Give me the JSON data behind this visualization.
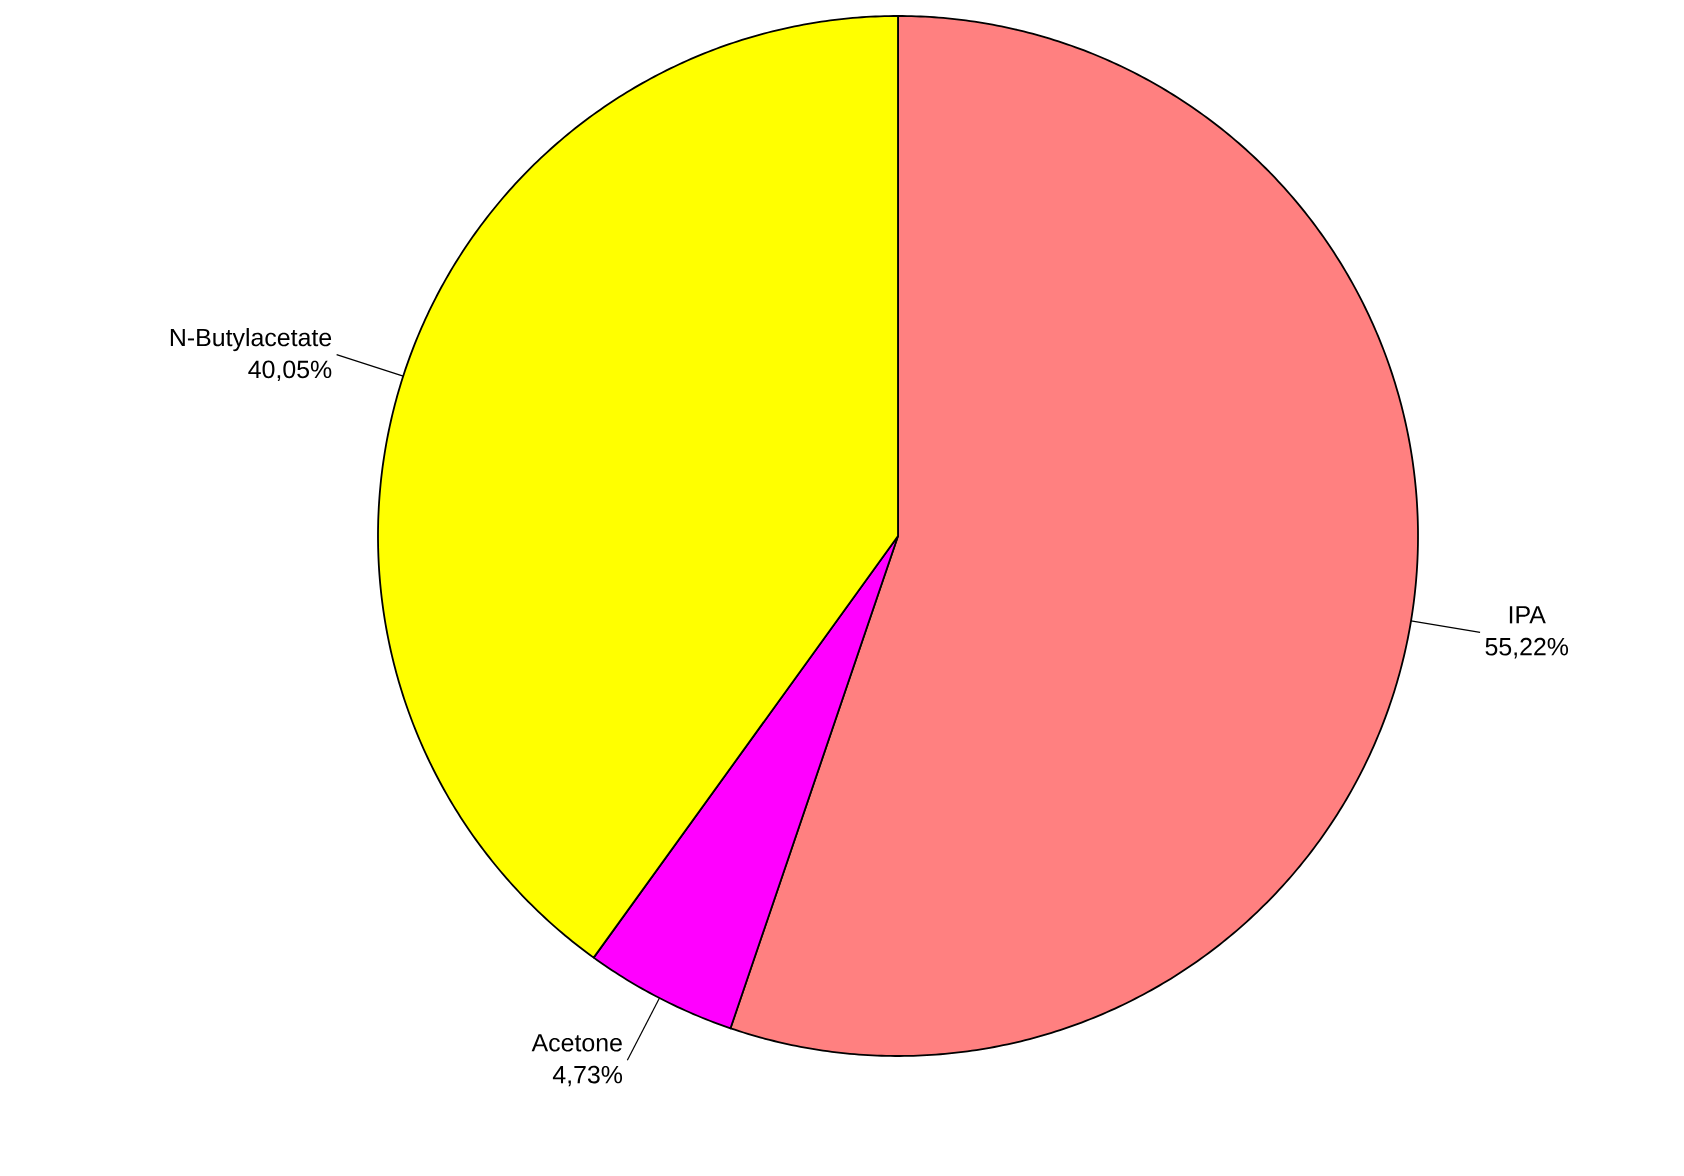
{
  "chart_data": {
    "type": "pie",
    "categories": [
      "IPA",
      "Acetone",
      "N-Butylacetate"
    ],
    "values": [
      55.22,
      4.73,
      40.05
    ],
    "colors": [
      "#ff8080",
      "#ff00ff",
      "#ffff00"
    ],
    "value_labels": [
      "55,22%",
      "4,73%",
      "40,05%"
    ]
  }
}
